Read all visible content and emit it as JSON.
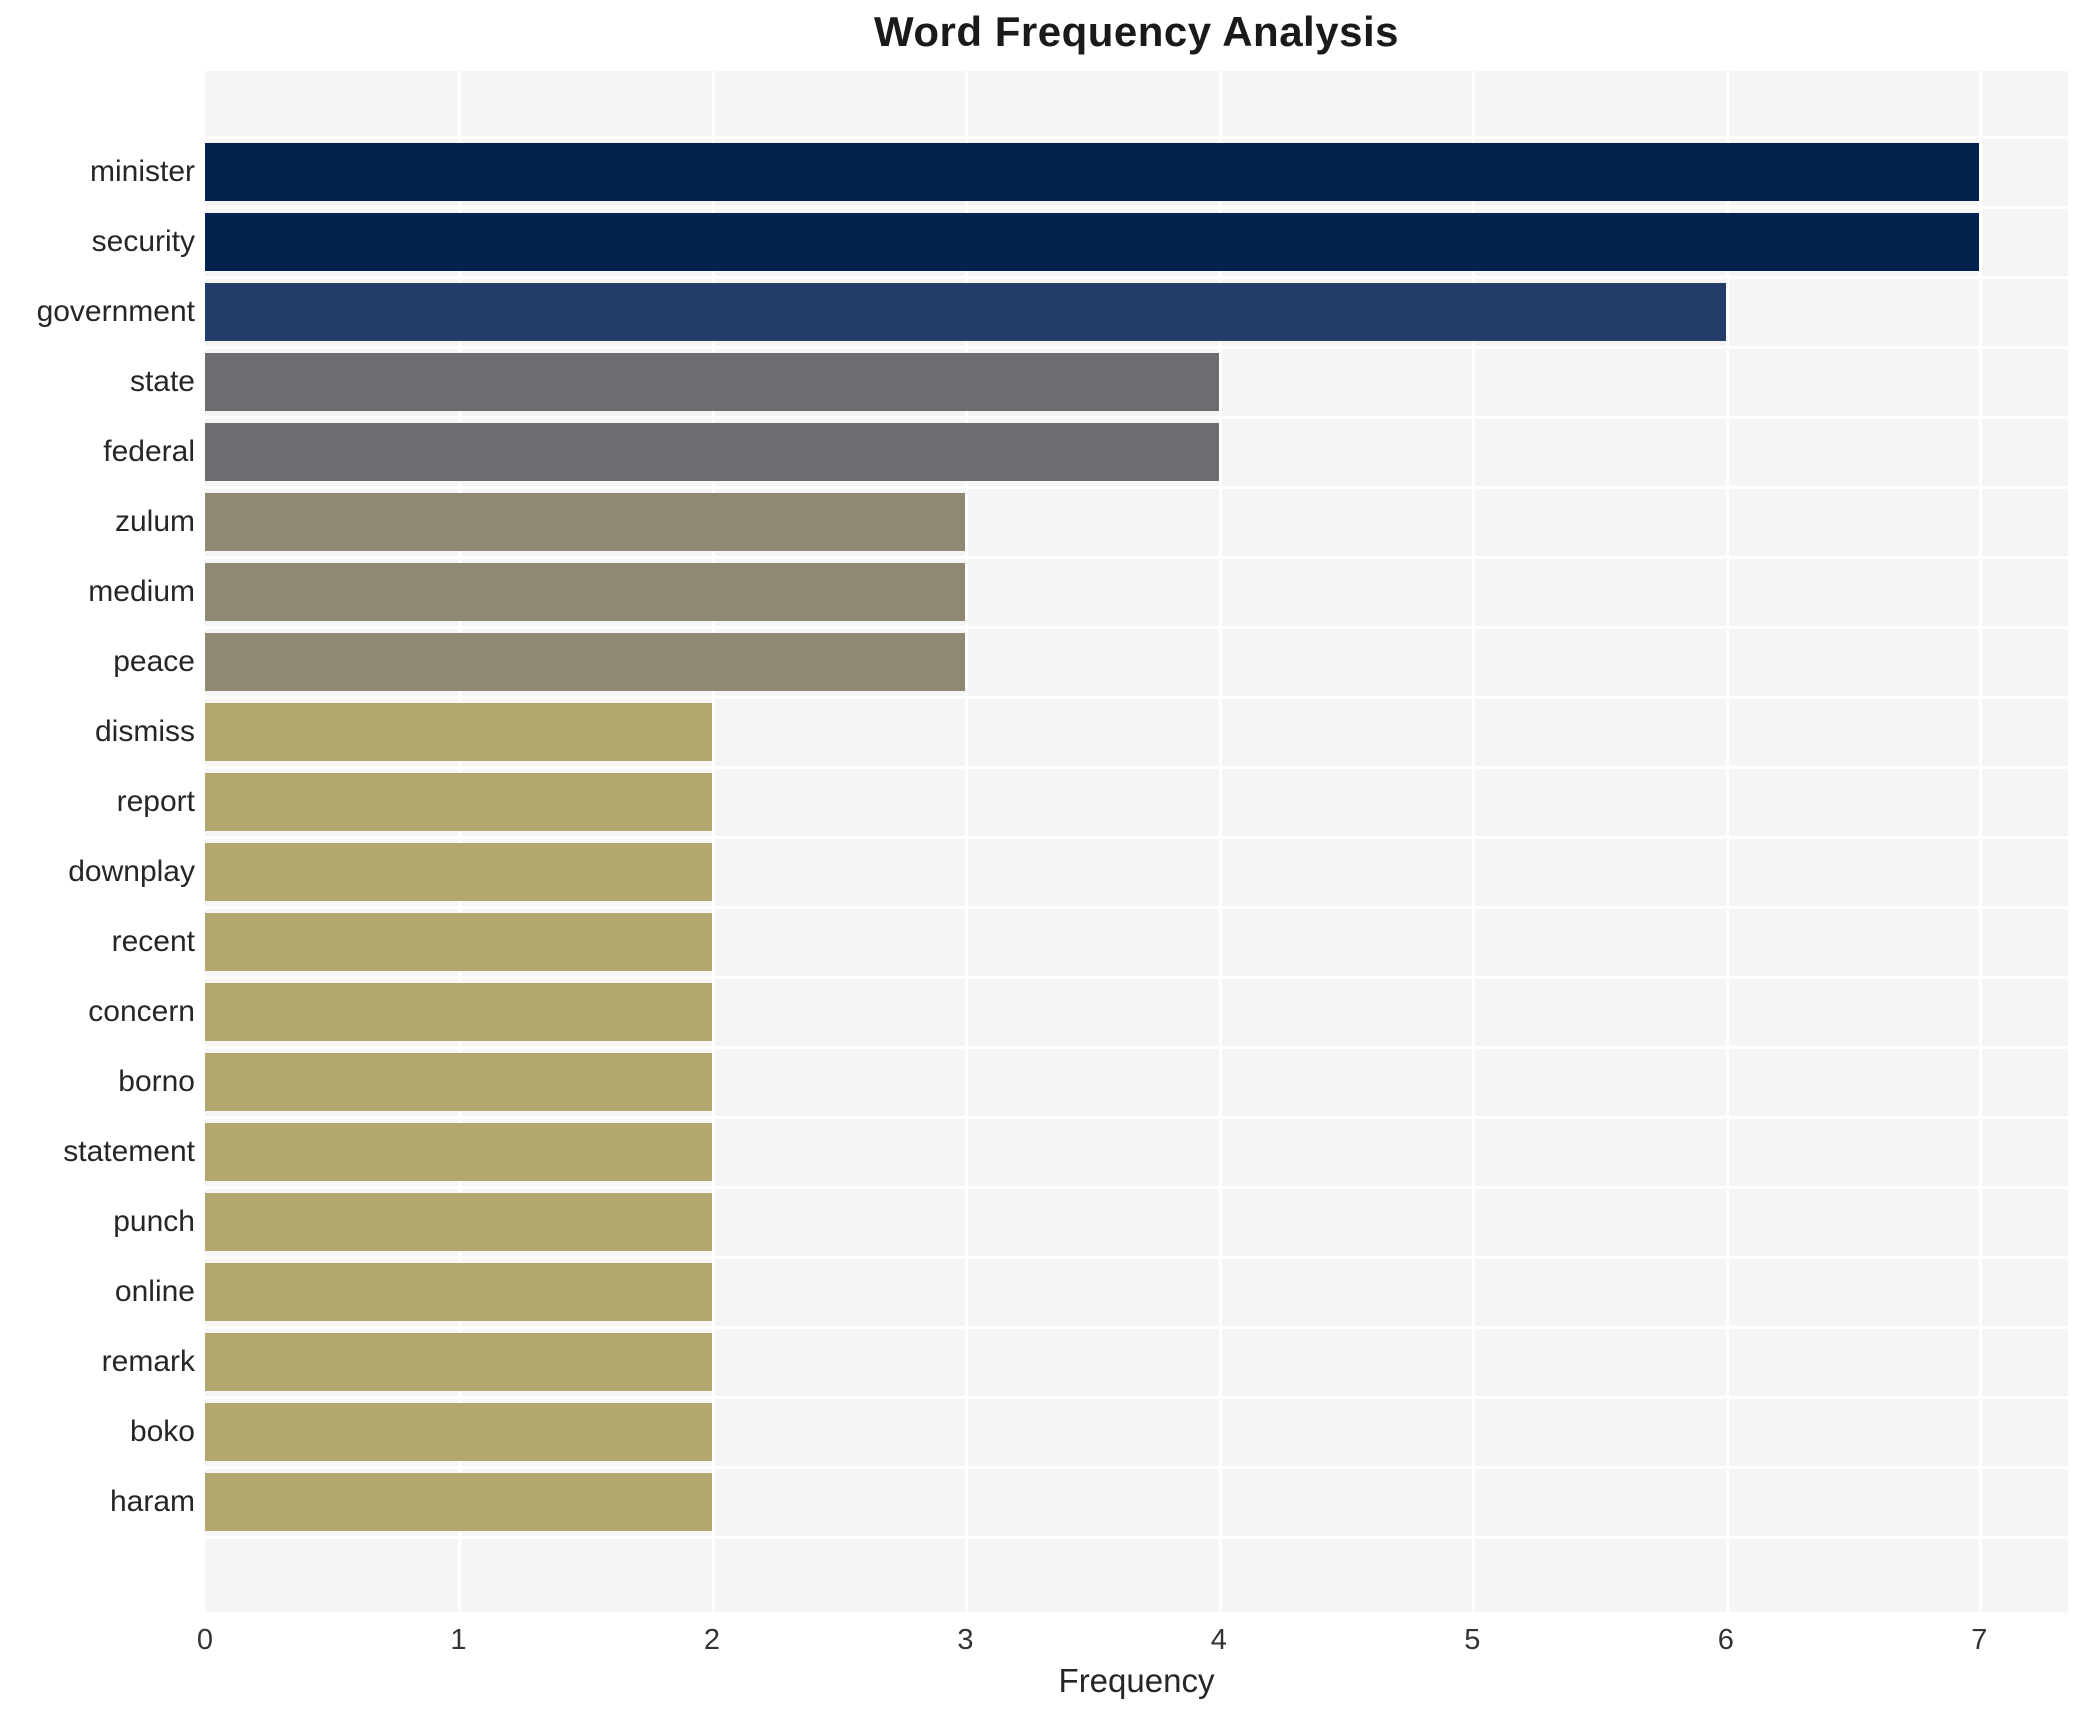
{
  "chart_data": {
    "type": "bar",
    "orientation": "horizontal",
    "title": "Word Frequency Analysis",
    "xlabel": "Frequency",
    "ylabel": "",
    "categories": [
      "minister",
      "security",
      "government",
      "state",
      "federal",
      "zulum",
      "medium",
      "peace",
      "dismiss",
      "report",
      "downplay",
      "recent",
      "concern",
      "borno",
      "statement",
      "punch",
      "online",
      "remark",
      "boko",
      "haram"
    ],
    "values": [
      7,
      7,
      6,
      4,
      4,
      3,
      3,
      3,
      2,
      2,
      2,
      2,
      2,
      2,
      2,
      2,
      2,
      2,
      2,
      2
    ],
    "bar_colors": [
      "#03234f",
      "#03234f",
      "#243e6b",
      "#6b6d70",
      "#6b6d70",
      "#8e8874",
      "#8e8874",
      "#8e8874",
      "#b1a76f",
      "#b1a76f",
      "#b1a76f",
      "#b1a76f",
      "#b1a76f",
      "#b1a76f",
      "#b1a76f",
      "#b1a76f",
      "#b1a76f",
      "#b1a76f",
      "#b1a76f",
      "#b1a76f"
    ],
    "xticks": [
      0,
      1,
      2,
      3,
      4,
      5,
      6,
      7
    ],
    "xlim": [
      0,
      7.35
    ],
    "legend": "none",
    "grid": "on",
    "plot_background": "#f5f5f6",
    "grid_color": "#ffffff",
    "text_color": "#262626"
  }
}
